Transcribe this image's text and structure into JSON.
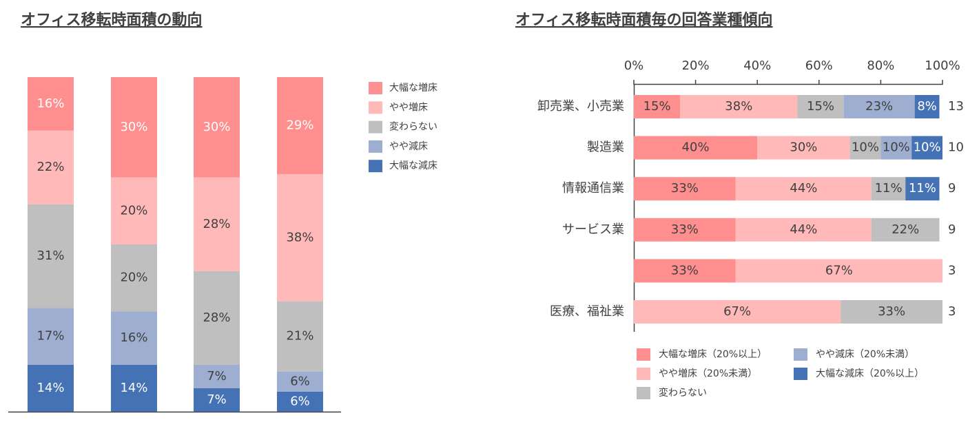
{
  "chart_data": [
    {
      "type": "stacked-bar",
      "title": "オフィス移転時面積の動向",
      "categories": [
        null,
        null,
        null,
        null
      ],
      "series": [
        {
          "name": "大幅な減床",
          "color": "#4472b4",
          "values": [
            14,
            14,
            7,
            6
          ],
          "value_labels": [
            "14%",
            "14%",
            "7%",
            "6%"
          ]
        },
        {
          "name": "やや減床",
          "color": "#9daed0",
          "values": [
            17,
            16,
            7,
            6
          ],
          "value_labels": [
            "17%",
            "16%",
            "7%",
            "6%"
          ]
        },
        {
          "name": "変わらない",
          "color": "#bfbfbf",
          "values": [
            31,
            20,
            28,
            21
          ],
          "value_labels": [
            "31%",
            "20%",
            "28%",
            "21%"
          ]
        },
        {
          "name": "やや増床",
          "color": "#ffb9b9",
          "values": [
            22,
            20,
            28,
            38
          ],
          "value_labels": [
            "22%",
            "20%",
            "28%",
            "38%"
          ]
        },
        {
          "name": "大幅な増床",
          "color": "#ff8f8f",
          "values": [
            16,
            30,
            30,
            29
          ],
          "value_labels": [
            "16%",
            "30%",
            "30%",
            "29%"
          ]
        }
      ],
      "ylim": [
        0,
        100
      ],
      "legend": "right"
    },
    {
      "type": "stacked-barh",
      "title": "オフィス移転時面積毎の回答業種傾向",
      "categories": [
        "卸売業、小売業",
        "製造業",
        "情報通信業",
        "サービス業",
        null,
        "医療、福祉業"
      ],
      "counts": [
        13,
        10,
        9,
        9,
        3,
        3
      ],
      "series": [
        {
          "name": "大幅な増床（20%以上）",
          "color": "#ff8f8f",
          "values": [
            15,
            40,
            33,
            33,
            33,
            null
          ],
          "value_labels": [
            "15%",
            "40%",
            "33%",
            "33%",
            "33%",
            null
          ]
        },
        {
          "name": "やや増床（20%未満）",
          "color": "#ffb9b9",
          "values": [
            38,
            30,
            44,
            44,
            67,
            67
          ],
          "value_labels": [
            "38%",
            "30%",
            "44%",
            "44%",
            "67%",
            "67%"
          ]
        },
        {
          "name": "変わらない",
          "color": "#bfbfbf",
          "values": [
            15,
            10,
            11,
            22,
            null,
            33
          ],
          "value_labels": [
            "15%",
            "10%",
            "11%",
            "22%",
            null,
            "33%"
          ]
        },
        {
          "name": "やや減床（20%未満）",
          "color": "#9daed0",
          "values": [
            23,
            10,
            null,
            null,
            null,
            null
          ],
          "value_labels": [
            "23%",
            "10%",
            null,
            null,
            null,
            null
          ]
        },
        {
          "name": "大幅な減床（20%以上）",
          "color": "#4472b4",
          "values": [
            8,
            10,
            11,
            null,
            null,
            null
          ],
          "value_labels": [
            "8%",
            "10%",
            "11%",
            null,
            null,
            null
          ]
        }
      ],
      "xlim": [
        0,
        100
      ],
      "xticks": [
        {
          "value": 0,
          "label": "0%"
        },
        {
          "value": 20,
          "label": "20%"
        },
        {
          "value": 40,
          "label": "40%"
        },
        {
          "value": 60,
          "label": "60%"
        },
        {
          "value": 80,
          "label": "80%"
        },
        {
          "value": 100,
          "label": "100%"
        }
      ],
      "legend": "bottom"
    }
  ]
}
